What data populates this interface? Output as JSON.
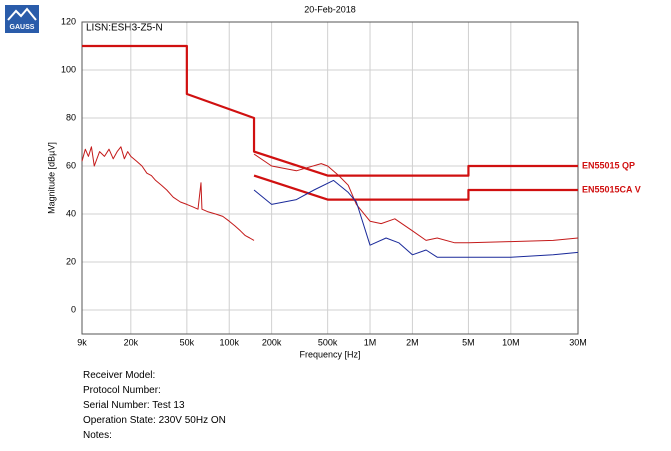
{
  "logo": "GAUSS",
  "chart_data": {
    "type": "line",
    "title": "20-Feb-2018",
    "subtitle": "LISN:ESH3-Z5-N",
    "x_label": "Frequency [Hz]",
    "y_label": "Magnitude [dBµV]",
    "log_x": true,
    "grid": true,
    "xlim": [
      9000,
      30000000
    ],
    "ylim": [
      -10,
      120
    ],
    "xticks": [
      {
        "value": 9000,
        "label": "9k"
      },
      {
        "value": 20000,
        "label": "20k"
      },
      {
        "value": 50000,
        "label": "50k"
      },
      {
        "value": 100000,
        "label": "100k"
      },
      {
        "value": 200000,
        "label": "200k"
      },
      {
        "value": 500000,
        "label": "500k"
      },
      {
        "value": 1000000,
        "label": "1M"
      },
      {
        "value": 2000000,
        "label": "2M"
      },
      {
        "value": 5000000,
        "label": "5M"
      },
      {
        "value": 10000000,
        "label": "10M"
      },
      {
        "value": 30000000,
        "label": "30M"
      }
    ],
    "yticks": [
      0,
      20,
      40,
      60,
      80,
      100,
      120
    ],
    "series": [
      {
        "name": "EN55015 QP",
        "color": "#d01010",
        "width": 2.2,
        "x": [
          9000,
          50000,
          50000,
          150000,
          150000,
          500000,
          5000000,
          5000000,
          30000000
        ],
        "values": [
          110,
          110,
          90,
          80,
          66,
          56,
          56,
          60,
          60
        ]
      },
      {
        "name": "EN55015CA V",
        "color": "#d01010",
        "width": 2.2,
        "x": [
          150000,
          500000,
          5000000,
          5000000,
          30000000
        ],
        "values": [
          56,
          46,
          46,
          50,
          50
        ]
      },
      {
        "color": "#c41a1a",
        "width": 1,
        "x": [
          9000,
          9500,
          10000,
          10500,
          11000,
          12000,
          13000,
          14000,
          15000,
          16000,
          17000,
          18000,
          19000,
          20000,
          22000,
          24000,
          26000,
          28000,
          30000,
          33000,
          36000,
          40000,
          45000,
          50000,
          55000,
          60000,
          63000,
          64000,
          70000,
          80000,
          90000,
          100000,
          110000,
          120000,
          130000,
          140000,
          150000,
          150000,
          150000,
          200000,
          300000,
          450000,
          500000,
          600000,
          700000,
          800000,
          1000000,
          1200000,
          1500000,
          2000000,
          2500000,
          3000000,
          4000000,
          5000000,
          10000000,
          20000000,
          30000000
        ],
        "values": [
          62,
          67,
          64,
          68,
          60,
          66,
          64,
          67,
          63,
          66,
          68,
          63,
          66,
          64,
          62,
          60,
          57,
          56,
          54,
          52,
          50,
          47,
          45,
          44,
          43,
          42,
          53,
          42,
          41,
          40,
          39,
          37,
          35,
          33,
          31,
          30,
          29,
          null,
          65,
          60,
          58,
          61,
          60,
          56,
          52,
          44,
          37,
          36,
          38,
          33,
          29,
          30,
          28,
          28,
          28.5,
          29,
          30
        ]
      },
      {
        "color": "#1a2a9a",
        "width": 1,
        "x": [
          150000,
          200000,
          300000,
          400000,
          550000,
          700000,
          800000,
          1000000,
          1300000,
          1600000,
          2000000,
          2500000,
          3000000,
          5000000,
          10000000,
          20000000,
          30000000
        ],
        "values": [
          50,
          44,
          46,
          50,
          54,
          49,
          45,
          27,
          30,
          28,
          23,
          25,
          22,
          22,
          22,
          23,
          24
        ]
      }
    ]
  },
  "info": [
    "Receiver Model:",
    "Protocol Number:",
    "Serial Number: Test 13",
    "Operation State: 230V 50Hz ON",
    "Notes:"
  ]
}
